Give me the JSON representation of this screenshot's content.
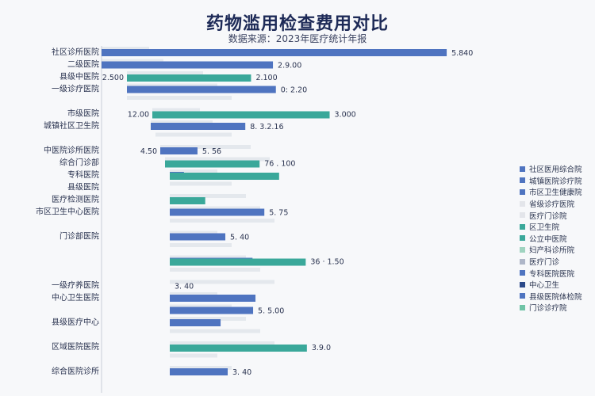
{
  "chart_data": {
    "type": "bar",
    "title": "药物滥用检查费用对比",
    "subtitle": "数据来源：2023年医疗统计年报",
    "categories": [
      "社区诊所医院",
      "二级医院",
      "县级中医院",
      "一级诊疗医院",
      "",
      "市级医院",
      "城镇社区卫生院",
      "",
      "中医院诊所医院",
      "综合门诊部",
      "专科医院",
      "县级医院",
      "医疗检测医院",
      "市区卫生中心医院",
      "",
      "门诊部医院",
      "",
      "",
      "",
      "一级疗养医院",
      "中心卫生医院",
      "",
      "县级医疗中心",
      "",
      "区域医院医院",
      "",
      "综合医院诊所"
    ],
    "series": [
      {
        "values": [
          5840,
          2900,
          0,
          2520,
          0,
          0,
          1600,
          0,
          630,
          0,
          240,
          0,
          0,
          1600,
          0,
          940,
          0,
          1400,
          0,
          0,
          1450,
          1410,
          860,
          0,
          0,
          0,
          980
        ]
      },
      {
        "values": [
          0,
          0,
          2100,
          0,
          0,
          3000,
          0,
          0,
          0,
          1600,
          1850,
          0,
          600,
          0,
          0,
          0,
          0,
          2300,
          0,
          0,
          0,
          0,
          0,
          0,
          2320,
          0,
          0
        ]
      }
    ],
    "value_labels": [
      "5.840",
      "2.9.00",
      "2.100",
      "0: 2.20",
      "",
      "3.000",
      "8. 3.2.16",
      "",
      "5. 56",
      "76 . 100",
      "",
      "",
      "",
      "5. 75",
      "",
      "5. 40",
      "",
      "36 · 1.50",
      "",
      "3. 40",
      "",
      "5. 5.00",
      "",
      "",
      "3.9.0",
      "",
      "3. 40"
    ],
    "left_labels": [
      "",
      "",
      "2.500",
      "",
      "",
      "12.00",
      "",
      "",
      "4.50",
      "",
      "",
      "",
      "",
      "",
      "",
      "",
      "",
      "",
      "",
      "",
      "",
      "",
      "",
      "",
      "",
      "",
      ""
    ],
    "legend": [
      "社区医用综合院",
      "城镇医院诊疗院",
      "市区卫生健康院",
      "省级诊疗医院",
      "医疗门诊院",
      "区卫生院",
      "公立中医院",
      "妇产科诊所院",
      "医疗门诊",
      "专科医院医院",
      "中心卫生",
      "县级医院体检院",
      "门诊诊疗院"
    ],
    "colors": {
      "series1": "#4f74c0",
      "series2": "#3aa89a",
      "legend": [
        "#4f74c0",
        "#4f74c0",
        "#4f74c0",
        "#e3e5ea",
        "#e3e5ea",
        "#3aa89a",
        "#3aa89a",
        "#9fd3c0",
        "#aeb6c8",
        "#4f74c0",
        "#2c4a8a",
        "#4f74c0",
        "#6fc3a6"
      ]
    },
    "xlim": [
      0,
      6000
    ],
    "grid": false
  }
}
